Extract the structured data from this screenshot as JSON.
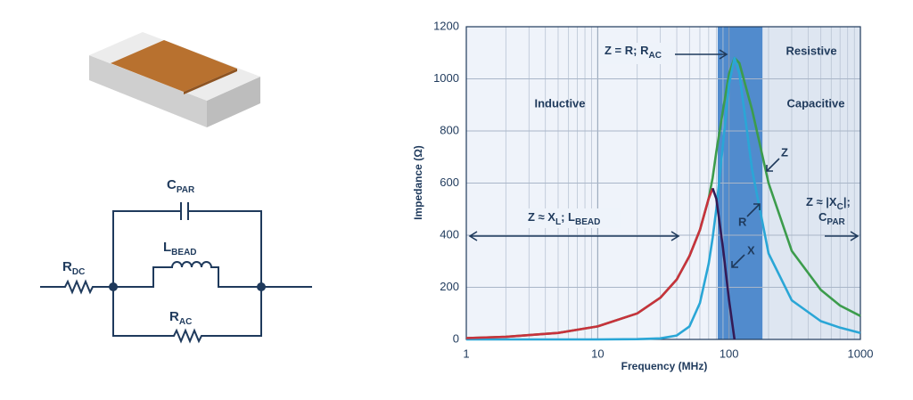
{
  "diagram": {
    "labels": [
      {
        "base": "C",
        "sub": "PAR"
      },
      {
        "base": "L",
        "sub": "BEAD"
      },
      {
        "base": "R",
        "sub": "DC"
      },
      {
        "base": "R",
        "sub": "AC"
      }
    ]
  },
  "chart_data": {
    "type": "line",
    "x_label": "Frequency (MHz)",
    "y_label": "Impedance (Ω)",
    "x_scale": "log",
    "x": [
      1,
      2,
      5,
      10,
      20,
      30,
      40,
      50,
      60,
      70,
      75,
      80,
      90,
      100,
      110,
      120,
      150,
      200,
      300,
      500,
      700,
      1000
    ],
    "series": [
      {
        "name": "Z",
        "color": "#3c9c4c",
        "values": [
          5,
          10,
          25,
          50,
          100,
          160,
          230,
          320,
          420,
          540,
          620,
          720,
          880,
          1020,
          1080,
          1060,
          880,
          600,
          340,
          190,
          130,
          90
        ]
      },
      {
        "name": "R",
        "color": "#2aa6d6",
        "values": [
          0,
          0,
          0,
          0,
          1,
          4,
          15,
          50,
          140,
          290,
          390,
          500,
          750,
          980,
          1080,
          1020,
          650,
          330,
          150,
          70,
          45,
          25
        ]
      },
      {
        "name": "X",
        "color": "#c8323c",
        "values": [
          5,
          10,
          25,
          50,
          100,
          160,
          230,
          320,
          420,
          540,
          580,
          null,
          null,
          null,
          null,
          null,
          null,
          null,
          null,
          null,
          null,
          null
        ]
      },
      {
        "color": "#341a55",
        "values": [
          null,
          null,
          null,
          null,
          null,
          null,
          null,
          null,
          null,
          null,
          580,
          540,
          350,
          150,
          0,
          null,
          null,
          null,
          null,
          null,
          null,
          null
        ]
      }
    ],
    "xlim": [
      1,
      1000
    ],
    "xticks": [
      1,
      10,
      100,
      1000
    ],
    "x_minor_ticks": [
      2,
      3,
      4,
      5,
      6,
      7,
      8,
      9,
      20,
      30,
      40,
      50,
      60,
      70,
      80,
      90,
      200,
      300,
      400,
      500,
      600,
      700,
      800,
      900
    ],
    "ylim": [
      0,
      1200
    ],
    "yticks": [
      0,
      200,
      400,
      600,
      800,
      1000,
      1200
    ],
    "grid": true,
    "regions": [
      {
        "label": "Inductive",
        "from": 1,
        "to": 82,
        "color": "#eef3fa"
      },
      {
        "label": "Resistive",
        "from": 82,
        "to": 180,
        "color": "#3f80c8"
      },
      {
        "label": "Capacitive",
        "from": 180,
        "to": 1000,
        "color": "#dbe4f0"
      }
    ],
    "annotations": [
      {
        "parts": [
          {
            "text": "Z ≈ X"
          },
          {
            "sub": "L"
          },
          {
            "text": "; L"
          },
          {
            "sub": "BEAD"
          }
        ]
      },
      {
        "parts": [
          {
            "text": "Z = R; R"
          },
          {
            "sub": "AC"
          }
        ]
      },
      {
        "parts": [
          {
            "text": "Z ≈ |X"
          },
          {
            "sub": "C"
          },
          {
            "text": "|;"
          },
          {
            "text": "C"
          },
          {
            "sub": "PAR"
          }
        ]
      }
    ]
  }
}
